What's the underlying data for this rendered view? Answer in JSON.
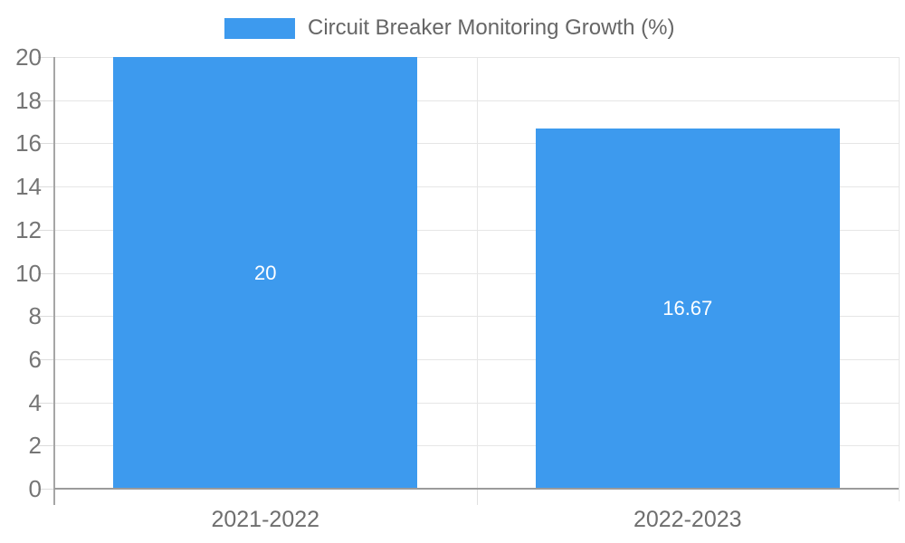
{
  "chart_data": {
    "type": "bar",
    "title": "Circuit Breaker Monitoring Growth (%)",
    "categories": [
      "2021-2022",
      "2022-2023"
    ],
    "series": [
      {
        "name": "Circuit Breaker Monitoring Growth (%)",
        "values": [
          20,
          16.67
        ],
        "value_labels": [
          "20",
          "16.67"
        ]
      }
    ],
    "xlabel": "",
    "ylabel": "",
    "ylim": [
      0,
      20
    ],
    "yticks": [
      0,
      2,
      4,
      6,
      8,
      10,
      12,
      14,
      16,
      18,
      20
    ],
    "grid": true,
    "legend_position": "top-center"
  },
  "colors": {
    "bar": "#3D9AEE",
    "grid": "#E6E6E6",
    "axis": "#A6A6A6",
    "tick_text": "#757575",
    "legend_text": "#666666",
    "bar_label_text": "#FFFFFF",
    "background": "#FFFFFF"
  }
}
